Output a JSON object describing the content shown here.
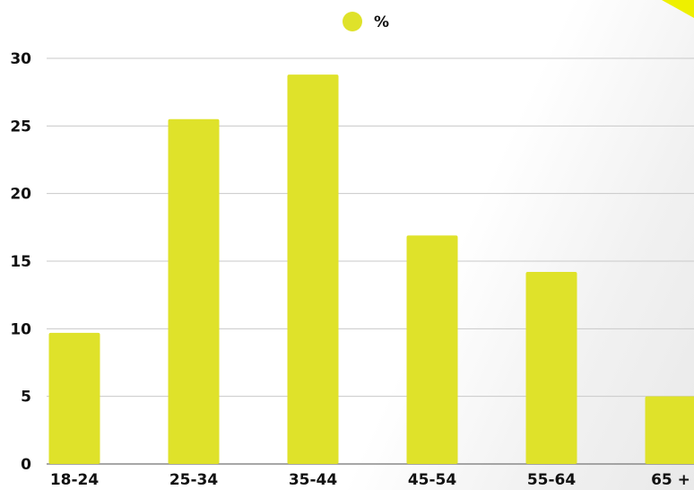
{
  "chart_data": {
    "type": "bar",
    "categories": [
      "18-24",
      "25-34",
      "35-44",
      "45-54",
      "55-64",
      "65 +"
    ],
    "series": [
      {
        "name": "%",
        "values": [
          9.7,
          25.5,
          28.8,
          16.9,
          14.2,
          5.0
        ]
      }
    ],
    "ylim": [
      0,
      30
    ],
    "yticks": [
      0,
      5,
      10,
      15,
      20,
      25,
      30
    ],
    "grid": true,
    "legend_position": "top-center",
    "bar_color": "#dfe22a",
    "gridline_color": "#c9c9c9",
    "accent_color": "#eef000"
  }
}
